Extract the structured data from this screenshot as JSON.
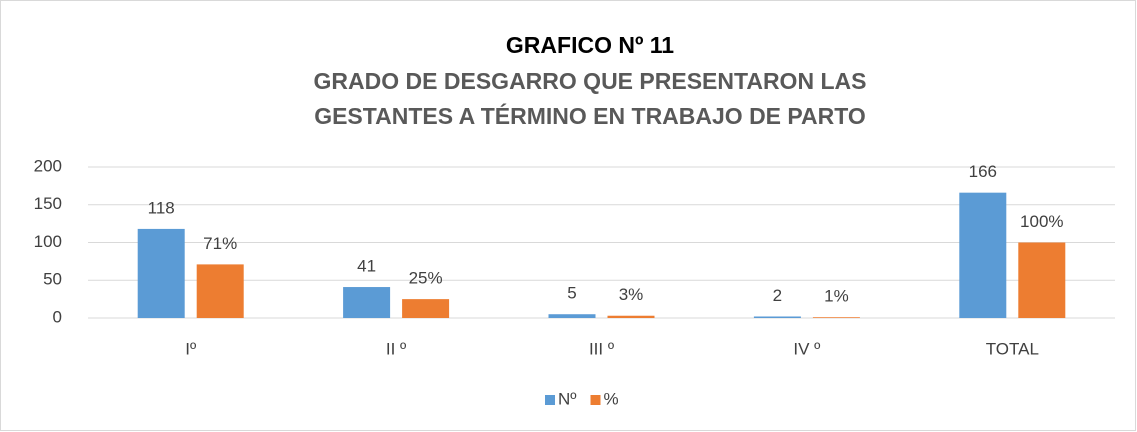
{
  "chart_data": {
    "type": "bar",
    "title": "GRAFICO  Nº 11",
    "subtitle": [
      "GRADO DE DESGARRO QUE PRESENTARON LAS",
      "GESTANTES A TÉRMINO EN TRABAJO DE PARTO"
    ],
    "categories": [
      "Iº",
      "II º",
      "III º",
      "IV º",
      "TOTAL"
    ],
    "series": [
      {
        "name": "Nº",
        "color": "#5b9bd5",
        "values": [
          118,
          41,
          5,
          2,
          166
        ]
      },
      {
        "name": "%",
        "color": "#ed7d31",
        "values": [
          71,
          25,
          3,
          1,
          100
        ],
        "value_labels": [
          "71%",
          "25%",
          "3%",
          "1%",
          "100%"
        ]
      }
    ],
    "ylim": [
      0,
      200
    ],
    "yticks": [
      0,
      50,
      100,
      150,
      200
    ],
    "grid": true,
    "legend": "bottom"
  }
}
